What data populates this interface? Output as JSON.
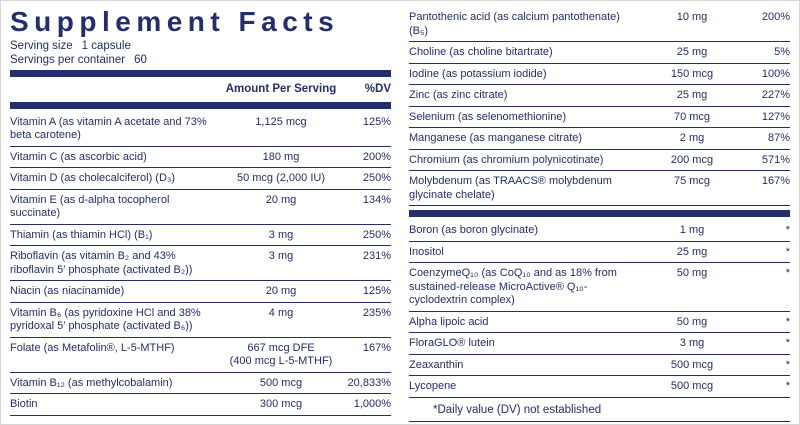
{
  "colors": {
    "ink": "#232e6b"
  },
  "title": "Supplement Facts",
  "serving": {
    "size_label": "Serving size",
    "size_value": "1 capsule",
    "container_label": "Servings per container",
    "container_value": "60"
  },
  "header": {
    "amount": "Amount Per Serving",
    "dv": "%DV"
  },
  "left_rows": [
    {
      "name": "Vitamin A (as vitamin A acetate and 73% beta carotene)",
      "amount": "1,125 mcg",
      "dv": "125%"
    },
    {
      "name": "Vitamin C (as ascorbic acid)",
      "amount": "180 mg",
      "dv": "200%"
    },
    {
      "name": "Vitamin D (as cholecalciferol) (D₃)",
      "amount": "50 mcg (2,000 IU)",
      "dv": "250%"
    },
    {
      "name": "Vitamin E (as d-alpha tocopherol succinate)",
      "amount": "20 mg",
      "dv": "134%"
    },
    {
      "name": "Thiamin (as thiamin HCl) (B₁)",
      "amount": "3 mg",
      "dv": "250%"
    },
    {
      "name": "Riboflavin (as vitamin B₂ and 43% riboflavin 5′ phosphate (activated B₂))",
      "amount": "3 mg",
      "dv": "231%"
    },
    {
      "name": "Niacin (as niacinamide)",
      "amount": "20 mg",
      "dv": "125%"
    },
    {
      "name": "Vitamin B₆ (as pyridoxine HCl and 38% pyridoxal 5′ phosphate (activated B₆))",
      "amount": "4 mg",
      "dv": "235%"
    },
    {
      "name": "Folate (as Metafolin®, L-5-MTHF)",
      "amount": "667 mcg DFE\n(400 mcg L-5-MTHF)",
      "dv": "167%"
    },
    {
      "name": "Vitamin B₁₂ (as methylcobalamin)",
      "amount": "500 mcg",
      "dv": "20,833%"
    },
    {
      "name": "Biotin",
      "amount": "300 mcg",
      "dv": "1,000%"
    }
  ],
  "right_rows_1": [
    {
      "name": "Pantothenic acid (as calcium pantothenate) (B₅)",
      "amount": "10 mg",
      "dv": "200%"
    },
    {
      "name": "Choline (as choline bitartrate)",
      "amount": "25 mg",
      "dv": "5%"
    },
    {
      "name": "Iodine (as potassium iodide)",
      "amount": "150 mcg",
      "dv": "100%"
    },
    {
      "name": "Zinc (as zinc citrate)",
      "amount": "25 mg",
      "dv": "227%"
    },
    {
      "name": "Selenium (as selenomethionine)",
      "amount": "70 mcg",
      "dv": "127%"
    },
    {
      "name": "Manganese (as manganese citrate)",
      "amount": "2 mg",
      "dv": "87%"
    },
    {
      "name": "Chromium (as chromium polynicotinate)",
      "amount": "200 mcg",
      "dv": "571%"
    },
    {
      "name": "Molybdenum (as TRAACS® molybdenum glycinate chelate)",
      "amount": "75 mcg",
      "dv": "167%"
    }
  ],
  "right_rows_2": [
    {
      "name": "Boron (as boron glycinate)",
      "amount": "1 mg",
      "dv": "*"
    },
    {
      "name": "Inositol",
      "amount": "25 mg",
      "dv": "*"
    },
    {
      "name": "CoenzymeQ₁₀ (as CoQ₁₀ and as 18% from sustained-release MicroActive® Q₁₀-cyclodextrin complex)",
      "amount": "50 mg",
      "dv": "*"
    },
    {
      "name": "Alpha lipoic acid",
      "amount": "50 mg",
      "dv": "*"
    },
    {
      "name": "FloraGLO® lutein",
      "amount": "3 mg",
      "dv": "*"
    },
    {
      "name": "Zeaxanthin",
      "amount": "500 mcg",
      "dv": "*"
    },
    {
      "name": "Lycopene",
      "amount": "500 mcg",
      "dv": "*"
    }
  ],
  "footnote": "*Daily value (DV) not established"
}
